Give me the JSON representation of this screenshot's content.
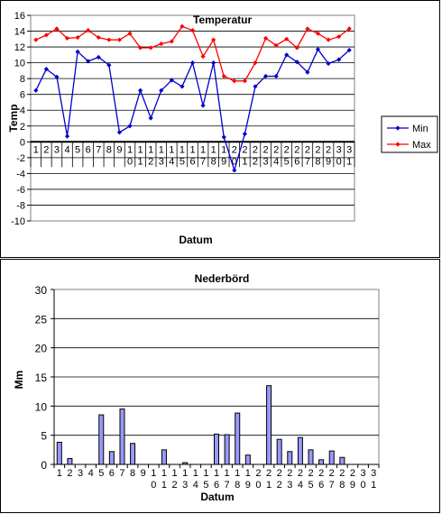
{
  "chart_data": [
    {
      "type": "line",
      "title": "Temperatur",
      "xlabel": "Datum",
      "ylabel": "Temp",
      "ylim": [
        -10,
        16
      ],
      "yticks": [
        -10,
        -8,
        -6,
        -4,
        -2,
        0,
        2,
        4,
        6,
        8,
        10,
        12,
        14,
        16
      ],
      "grid": true,
      "legend_position": "right",
      "categories": [
        "1",
        "2",
        "3",
        "4",
        "5",
        "6",
        "7",
        "8",
        "9",
        "10",
        "11",
        "12",
        "13",
        "14",
        "15",
        "16",
        "17",
        "18",
        "19",
        "20",
        "21",
        "22",
        "23",
        "24",
        "25",
        "26",
        "27",
        "28",
        "29",
        "30",
        "31"
      ],
      "series": [
        {
          "name": "Min",
          "color": "#0000cc",
          "marker": "diamond",
          "values": [
            6.5,
            9.2,
            8.2,
            0.7,
            11.4,
            10.2,
            10.7,
            9.7,
            1.2,
            2.0,
            6.5,
            3.0,
            6.5,
            7.8,
            7.0,
            10.0,
            4.6,
            10.0,
            0.6,
            -3.6,
            1.0,
            7.0,
            8.3,
            8.3,
            11.0,
            10.1,
            8.8,
            11.7,
            9.9,
            10.4,
            11.6
          ]
        },
        {
          "name": "Max",
          "color": "#ff0000",
          "marker": "diamond",
          "values": [
            12.9,
            13.5,
            14.3,
            13.1,
            13.2,
            14.1,
            13.2,
            12.9,
            12.9,
            13.7,
            11.9,
            11.9,
            12.4,
            12.7,
            14.6,
            14.1,
            10.8,
            12.9,
            8.3,
            7.7,
            7.7,
            10.0,
            13.1,
            12.2,
            13.0,
            11.9,
            14.3,
            13.7,
            12.9,
            13.3,
            14.3
          ]
        }
      ]
    },
    {
      "type": "bar",
      "title": "Nederbörd",
      "xlabel": "Datum",
      "ylabel": "Mm",
      "ylim": [
        0,
        30
      ],
      "yticks": [
        0,
        5,
        10,
        15,
        20,
        25,
        30
      ],
      "grid": true,
      "bar_color": "#9999ff",
      "categories": [
        "1",
        "2",
        "3",
        "4",
        "5",
        "6",
        "7",
        "8",
        "9",
        "10",
        "11",
        "12",
        "13",
        "14",
        "15",
        "16",
        "17",
        "18",
        "19",
        "20",
        "21",
        "22",
        "23",
        "24",
        "25",
        "26",
        "27",
        "28",
        "29",
        "30",
        "31"
      ],
      "values": [
        3.8,
        1.0,
        0,
        0,
        8.5,
        2.2,
        9.5,
        3.6,
        0,
        0,
        2.5,
        0,
        0.3,
        0,
        0,
        5.2,
        5.1,
        8.8,
        1.6,
        0,
        13.5,
        4.3,
        2.2,
        4.6,
        2.5,
        0.8,
        2.3,
        1.2,
        0,
        0,
        0
      ]
    }
  ]
}
